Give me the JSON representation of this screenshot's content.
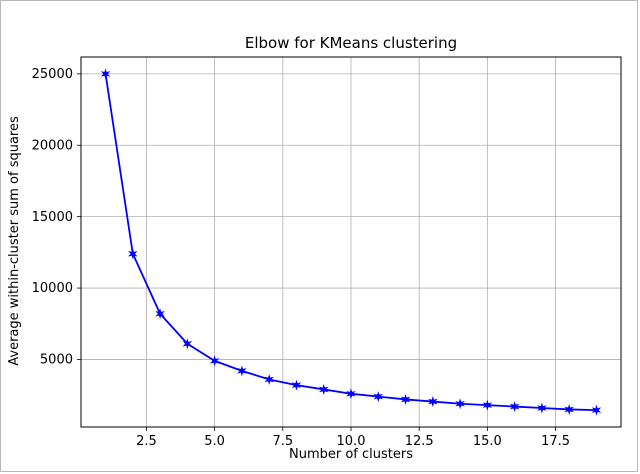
{
  "chart_data": {
    "type": "line",
    "title": "Elbow for KMeans clustering",
    "xlabel": "Number of clusters",
    "ylabel": "Average within-cluster sum of squares",
    "x": [
      1,
      2,
      3,
      4,
      5,
      6,
      7,
      8,
      9,
      10,
      11,
      12,
      13,
      14,
      15,
      16,
      17,
      18,
      19
    ],
    "y": [
      25000,
      12400,
      8200,
      6100,
      4900,
      4200,
      3600,
      3200,
      2900,
      2600,
      2400,
      2200,
      2050,
      1900,
      1800,
      1700,
      1600,
      1500,
      1450
    ],
    "xlim": [
      0.1,
      19.9
    ],
    "ylim": [
      270,
      26180
    ],
    "xtick_values": [
      2.5,
      5.0,
      7.5,
      10.0,
      12.5,
      15.0,
      17.5
    ],
    "xtick_labels": [
      "2.5",
      "5.0",
      "7.5",
      "10.0",
      "12.5",
      "15.0",
      "17.5"
    ],
    "ytick_values": [
      5000,
      10000,
      15000,
      20000,
      25000
    ],
    "ytick_labels": [
      "5000",
      "10000",
      "15000",
      "20000",
      "25000"
    ],
    "grid": true,
    "legend": false,
    "marker": "star",
    "colors": {
      "line": "#0000ff",
      "marker": "#0000ff",
      "grid": "#b0b0b0",
      "axes_edge": "#000000",
      "text": "#000000",
      "background": "#ffffff"
    }
  }
}
